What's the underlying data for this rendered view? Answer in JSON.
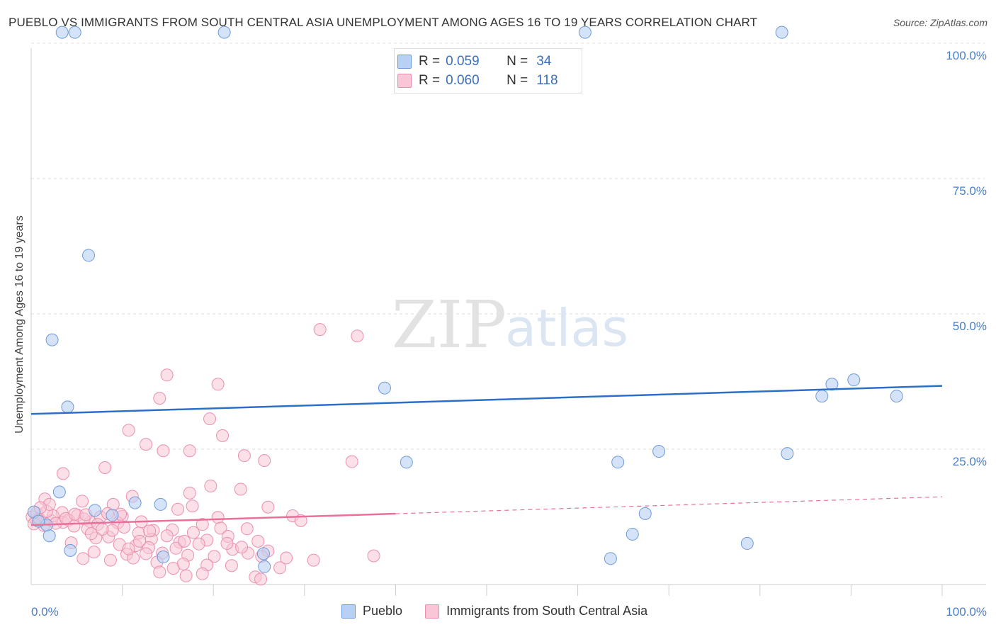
{
  "title": "PUEBLO VS IMMIGRANTS FROM SOUTH CENTRAL ASIA UNEMPLOYMENT AMONG AGES 16 TO 19 YEARS CORRELATION CHART",
  "source": "Source: ZipAtlas.com",
  "watermark": {
    "zip": "ZIP",
    "atlas": "atlas"
  },
  "legend": {
    "r_label": "R =",
    "n_label": "N =",
    "series1": {
      "r": "0.059",
      "n": "34"
    },
    "series2": {
      "r": "0.060",
      "n": "118"
    }
  },
  "bottom_legend": {
    "series1": "Pueblo",
    "series2": "Immigrants from South Central Asia"
  },
  "colors": {
    "pueblo_fill": "#b8d0f4",
    "pueblo_stroke": "#6f9ad8",
    "pueblo_line": "#2b6fc9",
    "immig_fill": "#f8c6d6",
    "immig_stroke": "#ec8fae",
    "immig_line": "#e8709a",
    "axis_text": "#4a7fc8",
    "grid": "#dddddd"
  },
  "chart_data": {
    "type": "scatter",
    "title": "PUEBLO VS IMMIGRANTS FROM SOUTH CENTRAL ASIA UNEMPLOYMENT AMONG AGES 16 TO 19 YEARS CORRELATION CHART",
    "xlabel": "",
    "ylabel": "Unemployment Among Ages 16 to 19 years",
    "xlim": [
      0,
      100
    ],
    "ylim": [
      0,
      105
    ],
    "x_tick_labels": [
      "0.0%",
      "100.0%"
    ],
    "y_tick_labels": [
      "25.0%",
      "50.0%",
      "75.0%",
      "100.0%"
    ],
    "y_ticks": [
      25,
      50,
      75,
      100
    ],
    "x_minor_ticks": [
      10,
      20,
      30,
      40,
      50,
      60,
      70,
      80,
      90,
      100
    ],
    "series": [
      {
        "name": "Pueblo",
        "r": 0.059,
        "n": 34,
        "trend": {
          "x": [
            0,
            100
          ],
          "y": [
            31.5,
            36.7
          ],
          "dashed_from": null
        },
        "points": [
          {
            "x": 3.4,
            "y": 102
          },
          {
            "x": 4.8,
            "y": 102
          },
          {
            "x": 21.2,
            "y": 102
          },
          {
            "x": 60.8,
            "y": 102
          },
          {
            "x": 82.4,
            "y": 102
          },
          {
            "x": 6.3,
            "y": 60.8
          },
          {
            "x": 2.3,
            "y": 45.2
          },
          {
            "x": 4.0,
            "y": 32.8
          },
          {
            "x": 38.8,
            "y": 36.3
          },
          {
            "x": 86.8,
            "y": 34.8
          },
          {
            "x": 90.3,
            "y": 37.8
          },
          {
            "x": 95.0,
            "y": 34.8
          },
          {
            "x": 83.0,
            "y": 24.2
          },
          {
            "x": 41.2,
            "y": 22.6
          },
          {
            "x": 64.4,
            "y": 22.6
          },
          {
            "x": 68.9,
            "y": 24.6
          },
          {
            "x": 87.9,
            "y": 37.0
          },
          {
            "x": 3.1,
            "y": 17.1
          },
          {
            "x": 7.0,
            "y": 13.7
          },
          {
            "x": 11.4,
            "y": 15.1
          },
          {
            "x": 14.2,
            "y": 14.8
          },
          {
            "x": 8.9,
            "y": 12.8
          },
          {
            "x": 67.4,
            "y": 13.1
          },
          {
            "x": 63.6,
            "y": 4.8
          },
          {
            "x": 78.6,
            "y": 7.6
          },
          {
            "x": 2.0,
            "y": 9.0
          },
          {
            "x": 4.3,
            "y": 6.3
          },
          {
            "x": 14.5,
            "y": 5.1
          },
          {
            "x": 25.6,
            "y": 3.3
          },
          {
            "x": 25.5,
            "y": 5.7
          },
          {
            "x": 1.7,
            "y": 11.0
          },
          {
            "x": 0.3,
            "y": 13.4
          },
          {
            "x": 0.8,
            "y": 11.7
          },
          {
            "x": 66.0,
            "y": 9.3
          }
        ]
      },
      {
        "name": "Immigrants from South Central Asia",
        "r": 0.06,
        "n": 118,
        "trend": {
          "x": [
            0,
            100
          ],
          "y": [
            11.0,
            16.2
          ],
          "dashed_from": 40
        },
        "points": [
          {
            "x": 31.7,
            "y": 47.1
          },
          {
            "x": 35.8,
            "y": 45.9
          },
          {
            "x": 14.9,
            "y": 38.7
          },
          {
            "x": 20.5,
            "y": 37.0
          },
          {
            "x": 14.1,
            "y": 34.4
          },
          {
            "x": 19.6,
            "y": 30.6
          },
          {
            "x": 10.7,
            "y": 28.5
          },
          {
            "x": 21.0,
            "y": 27.5
          },
          {
            "x": 12.6,
            "y": 25.9
          },
          {
            "x": 14.5,
            "y": 24.7
          },
          {
            "x": 17.4,
            "y": 24.7
          },
          {
            "x": 23.4,
            "y": 23.8
          },
          {
            "x": 25.6,
            "y": 22.9
          },
          {
            "x": 35.2,
            "y": 22.7
          },
          {
            "x": 8.1,
            "y": 21.6
          },
          {
            "x": 3.5,
            "y": 20.5
          },
          {
            "x": 19.7,
            "y": 18.2
          },
          {
            "x": 23.0,
            "y": 17.6
          },
          {
            "x": 17.4,
            "y": 16.9
          },
          {
            "x": 1.5,
            "y": 15.8
          },
          {
            "x": 11.1,
            "y": 16.3
          },
          {
            "x": 5.6,
            "y": 15.4
          },
          {
            "x": 9.0,
            "y": 14.8
          },
          {
            "x": 17.7,
            "y": 14.5
          },
          {
            "x": 26.0,
            "y": 14.3
          },
          {
            "x": 16.1,
            "y": 13.9
          },
          {
            "x": 3.4,
            "y": 13.3
          },
          {
            "x": 5.1,
            "y": 12.8
          },
          {
            "x": 10.0,
            "y": 12.6
          },
          {
            "x": 20.5,
            "y": 12.4
          },
          {
            "x": 28.7,
            "y": 12.7
          },
          {
            "x": 2.2,
            "y": 11.8
          },
          {
            "x": 3.5,
            "y": 11.5
          },
          {
            "x": 6.5,
            "y": 11.6
          },
          {
            "x": 9.5,
            "y": 11.4
          },
          {
            "x": 12.1,
            "y": 11.6
          },
          {
            "x": 0.5,
            "y": 12.0
          },
          {
            "x": 1.0,
            "y": 11.9
          },
          {
            "x": 2.4,
            "y": 12.7
          },
          {
            "x": 4.1,
            "y": 11.9
          },
          {
            "x": 5.8,
            "y": 12.1
          },
          {
            "x": 7.6,
            "y": 12.5
          },
          {
            "x": 8.4,
            "y": 13.1
          },
          {
            "x": 1.4,
            "y": 10.9
          },
          {
            "x": 4.7,
            "y": 10.8
          },
          {
            "x": 6.2,
            "y": 10.3
          },
          {
            "x": 10.2,
            "y": 10.6
          },
          {
            "x": 13.4,
            "y": 10.0
          },
          {
            "x": 15.5,
            "y": 10.1
          },
          {
            "x": 17.8,
            "y": 9.6
          },
          {
            "x": 18.8,
            "y": 11.1
          },
          {
            "x": 20.8,
            "y": 10.4
          },
          {
            "x": 23.7,
            "y": 10.3
          },
          {
            "x": 11.8,
            "y": 9.5
          },
          {
            "x": 14.9,
            "y": 9.0
          },
          {
            "x": 8.5,
            "y": 8.8
          },
          {
            "x": 21.6,
            "y": 8.9
          },
          {
            "x": 7.1,
            "y": 8.6
          },
          {
            "x": 19.3,
            "y": 8.2
          },
          {
            "x": 13.2,
            "y": 8.4
          },
          {
            "x": 24.9,
            "y": 8.0
          },
          {
            "x": 16.3,
            "y": 7.8
          },
          {
            "x": 18.4,
            "y": 7.5
          },
          {
            "x": 4.4,
            "y": 7.7
          },
          {
            "x": 9.7,
            "y": 7.4
          },
          {
            "x": 11.5,
            "y": 7.2
          },
          {
            "x": 12.9,
            "y": 6.8
          },
          {
            "x": 15.9,
            "y": 6.7
          },
          {
            "x": 22.1,
            "y": 6.5
          },
          {
            "x": 26.0,
            "y": 6.2
          },
          {
            "x": 6.9,
            "y": 6.0
          },
          {
            "x": 10.5,
            "y": 5.6
          },
          {
            "x": 12.6,
            "y": 5.7
          },
          {
            "x": 14.4,
            "y": 5.8
          },
          {
            "x": 17.2,
            "y": 5.4
          },
          {
            "x": 20.1,
            "y": 5.2
          },
          {
            "x": 23.8,
            "y": 5.8
          },
          {
            "x": 25.3,
            "y": 5.2
          },
          {
            "x": 28.0,
            "y": 4.9
          },
          {
            "x": 31.0,
            "y": 4.5
          },
          {
            "x": 37.6,
            "y": 5.3
          },
          {
            "x": 5.7,
            "y": 4.8
          },
          {
            "x": 8.7,
            "y": 4.5
          },
          {
            "x": 11.2,
            "y": 4.9
          },
          {
            "x": 13.8,
            "y": 4.1
          },
          {
            "x": 16.7,
            "y": 3.8
          },
          {
            "x": 19.3,
            "y": 3.6
          },
          {
            "x": 22.0,
            "y": 3.5
          },
          {
            "x": 27.3,
            "y": 3.1
          },
          {
            "x": 14.1,
            "y": 2.3
          },
          {
            "x": 17.0,
            "y": 1.6
          },
          {
            "x": 24.6,
            "y": 1.4
          },
          {
            "x": 25.2,
            "y": 1.0
          },
          {
            "x": 18.8,
            "y": 2.0
          },
          {
            "x": 15.6,
            "y": 3.0
          },
          {
            "x": 29.6,
            "y": 11.8
          },
          {
            "x": 0.1,
            "y": 12.5
          },
          {
            "x": 0.3,
            "y": 11.2
          },
          {
            "x": 0.6,
            "y": 13.2
          },
          {
            "x": 0.9,
            "y": 12.1
          },
          {
            "x": 1.7,
            "y": 13.5
          },
          {
            "x": 2.7,
            "y": 11.3
          },
          {
            "x": 3.8,
            "y": 12.2
          },
          {
            "x": 4.8,
            "y": 13.0
          },
          {
            "x": 6.0,
            "y": 12.9
          },
          {
            "x": 7.3,
            "y": 11.1
          },
          {
            "x": 8.9,
            "y": 10.0
          },
          {
            "x": 9.8,
            "y": 13.0
          },
          {
            "x": 11.9,
            "y": 8.0
          },
          {
            "x": 13.0,
            "y": 9.9
          },
          {
            "x": 2.0,
            "y": 14.8
          },
          {
            "x": 1.0,
            "y": 14.2
          },
          {
            "x": 6.6,
            "y": 9.4
          },
          {
            "x": 7.8,
            "y": 10.2
          },
          {
            "x": 10.7,
            "y": 6.6
          },
          {
            "x": 16.8,
            "y": 8.0
          },
          {
            "x": 21.5,
            "y": 7.6
          },
          {
            "x": 23.1,
            "y": 6.9
          }
        ]
      }
    ]
  }
}
